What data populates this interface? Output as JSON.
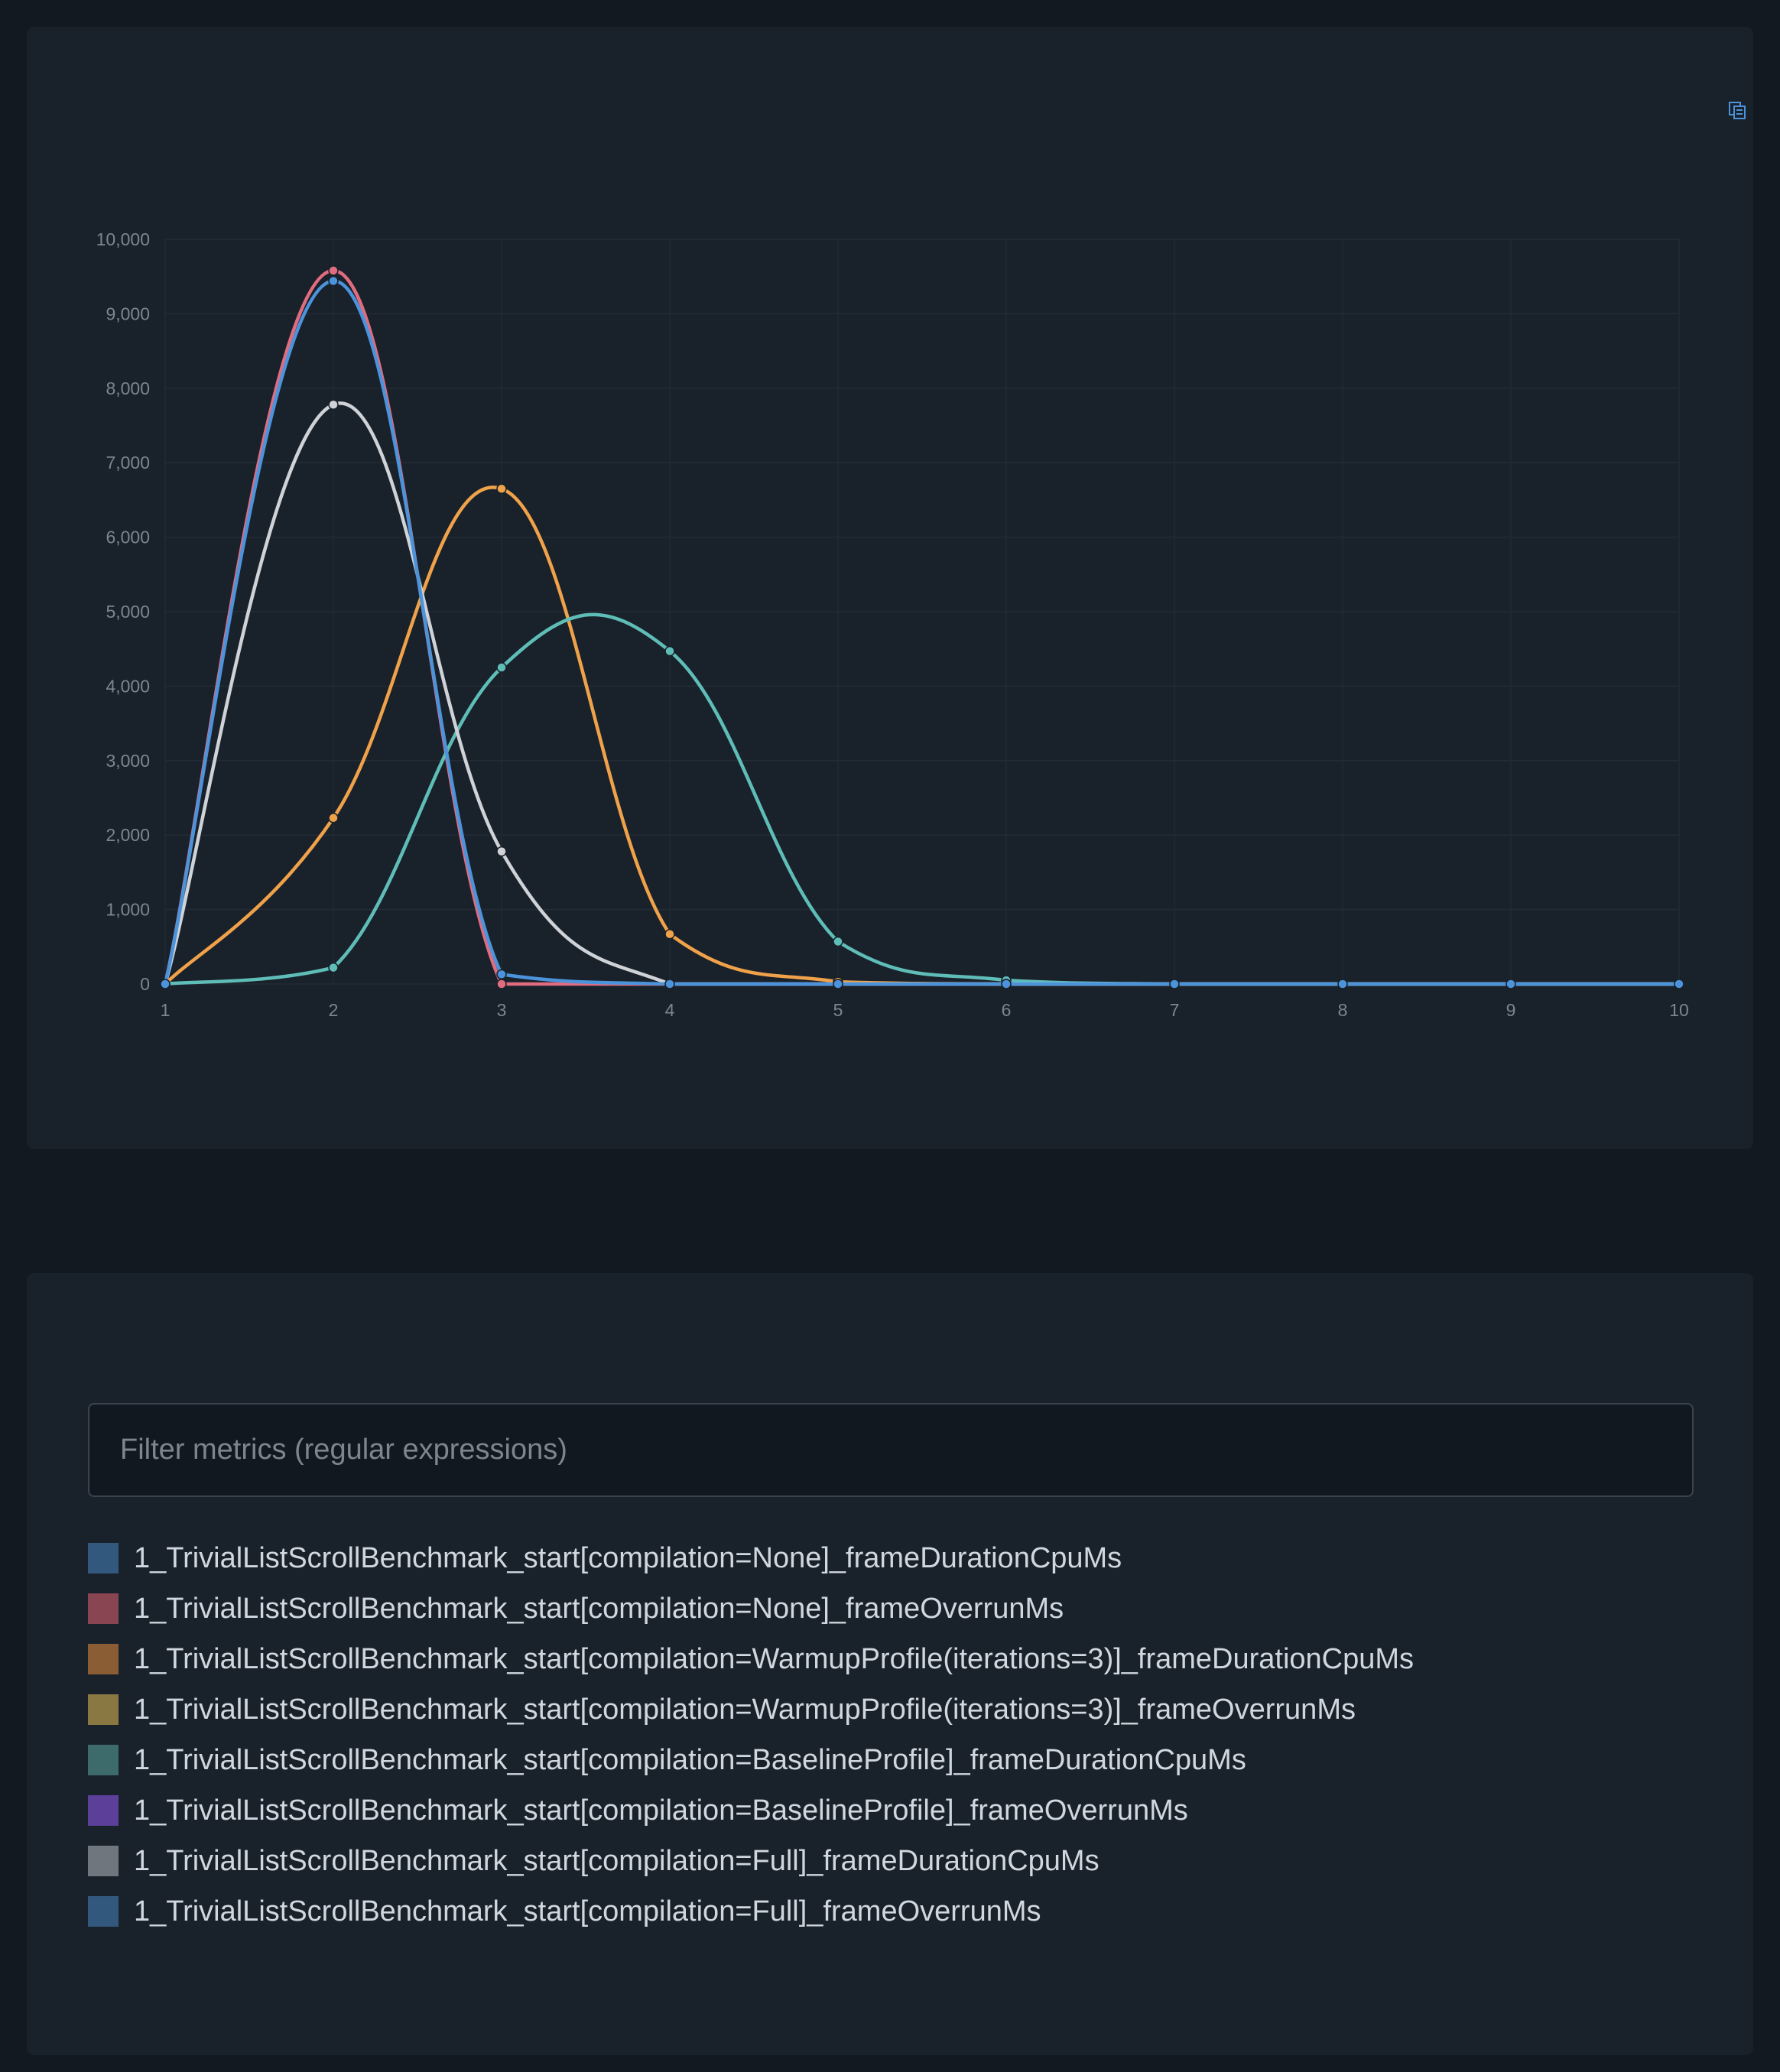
{
  "chart_data": {
    "type": "line",
    "title": "",
    "xlabel": "",
    "ylabel": "",
    "x": [
      1,
      2,
      3,
      4,
      5,
      6,
      7,
      8,
      9,
      10
    ],
    "xlim": [
      1,
      10
    ],
    "ylim": [
      0,
      10000
    ],
    "yticks": [
      0,
      1000,
      2000,
      3000,
      4000,
      5000,
      6000,
      7000,
      8000,
      9000,
      10000
    ],
    "ytick_labels": [
      "0",
      "1,000",
      "2,000",
      "3,000",
      "4,000",
      "5,000",
      "6,000",
      "7,000",
      "8,000",
      "9,000",
      "10,000"
    ],
    "xtick_labels": [
      "1",
      "2",
      "3",
      "4",
      "5",
      "6",
      "7",
      "8",
      "9",
      "10"
    ],
    "grid": true,
    "smooth": true,
    "series": [
      {
        "name": "1_TrivialListScrollBenchmark_start[compilation=None]_frameOverrunMs",
        "color": "#e06c7f",
        "values": [
          0,
          9580,
          0,
          0,
          0,
          0,
          0,
          0,
          0,
          0
        ]
      },
      {
        "name": "1_TrivialListScrollBenchmark_start[compilation=WarmupProfile(iterations=3)]_frameDurationCpuMs",
        "color": "#f0a24a",
        "values": [
          0,
          2230,
          6650,
          670,
          30,
          0,
          0,
          0,
          0,
          0
        ]
      },
      {
        "name": "1_TrivialListScrollBenchmark_start[compilation=BaselineProfile]_frameDurationCpuMs",
        "color": "#5fbdb8",
        "values": [
          0,
          220,
          4250,
          4470,
          570,
          50,
          0,
          0,
          0,
          0
        ]
      },
      {
        "name": "1_TrivialListScrollBenchmark_start[compilation=Full]_frameDurationCpuMs",
        "color": "#cfd3d8",
        "values": [
          0,
          7780,
          1780,
          0,
          0,
          0,
          0,
          0,
          0,
          0
        ]
      },
      {
        "name": "1_TrivialListScrollBenchmark_start[compilation=Full]_frameOverrunMs",
        "color": "#4b93db",
        "values": [
          0,
          9440,
          130,
          0,
          0,
          0,
          0,
          0,
          0,
          0
        ]
      }
    ]
  },
  "filter": {
    "placeholder": "Filter metrics (regular expressions)",
    "value": ""
  },
  "legend": [
    {
      "label": "1_TrivialListScrollBenchmark_start[compilation=None]_frameDurationCpuMs",
      "color": "#33587e"
    },
    {
      "label": "1_TrivialListScrollBenchmark_start[compilation=None]_frameOverrunMs",
      "color": "#8a4552"
    },
    {
      "label": "1_TrivialListScrollBenchmark_start[compilation=WarmupProfile(iterations=3)]_frameDurationCpuMs",
      "color": "#8a5d35"
    },
    {
      "label": "1_TrivialListScrollBenchmark_start[compilation=WarmupProfile(iterations=3)]_frameOverrunMs",
      "color": "#8a7843"
    },
    {
      "label": "1_TrivialListScrollBenchmark_start[compilation=BaselineProfile]_frameDurationCpuMs",
      "color": "#3d6b6b"
    },
    {
      "label": "1_TrivialListScrollBenchmark_start[compilation=BaselineProfile]_frameOverrunMs",
      "color": "#5b3f99"
    },
    {
      "label": "1_TrivialListScrollBenchmark_start[compilation=Full]_frameDurationCpuMs",
      "color": "#70767d"
    },
    {
      "label": "1_TrivialListScrollBenchmark_start[compilation=Full]_frameOverrunMs",
      "color": "#33587e"
    }
  ],
  "icons": {
    "copy": "copy-icon"
  }
}
